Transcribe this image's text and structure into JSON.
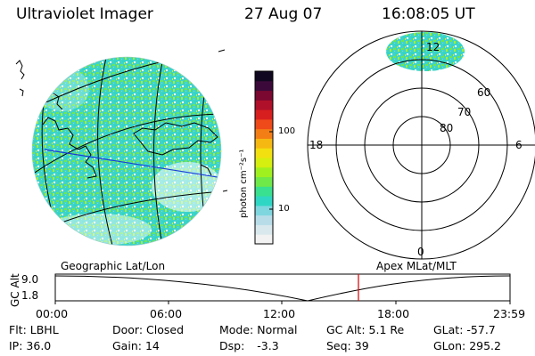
{
  "header": {
    "title": "Ultraviolet Imager",
    "date": "27 Aug 07",
    "time": "16:08:05 UT"
  },
  "colorbar": {
    "unit_label": "photon cm⁻²s⁻¹",
    "ticks": [
      "100",
      "10"
    ],
    "colors": [
      "#f2f2f2",
      "#d8e8ec",
      "#b8dde8",
      "#7fd6df",
      "#2fd6c4",
      "#39e08f",
      "#6fe84a",
      "#a0f020",
      "#d6ee10",
      "#f2e010",
      "#f5b812",
      "#f47e16",
      "#ee4a1a",
      "#d81f1f",
      "#b0102a",
      "#7a0830",
      "#3c0a3a",
      "#100820"
    ]
  },
  "polar": {
    "lat_labels": [
      "80",
      "70",
      "60"
    ],
    "mlt_labels": [
      "12",
      "18",
      "6",
      "0"
    ]
  },
  "timeline": {
    "left_label": "Geographic Lat/Lon",
    "right_label": "Apex  MLat/MLT",
    "axis_title": "GC Alt",
    "y_ticks": [
      "9.0",
      "1.8"
    ],
    "x_ticks": [
      "00:00",
      "06:00",
      "12:00",
      "18:00",
      "23:59"
    ],
    "marker_color": "#d81010"
  },
  "info": {
    "row1": [
      {
        "label": "Flt:",
        "value": "LBHL"
      },
      {
        "label": "Door:",
        "value": "Closed"
      },
      {
        "label": "Mode:",
        "value": "Normal"
      },
      {
        "label": "GC Alt:",
        "value": "5.1 Re"
      },
      {
        "label": "GLat:",
        "value": "-57.7"
      }
    ],
    "row2": [
      {
        "label": "IP:",
        "value": "36.0"
      },
      {
        "label": "Gain:",
        "value": "14"
      },
      {
        "label": "Dsp:",
        "value": "-3.3"
      },
      {
        "label": "Seq:",
        "value": "39"
      },
      {
        "label": "GLon:",
        "value": "295.2"
      }
    ]
  }
}
